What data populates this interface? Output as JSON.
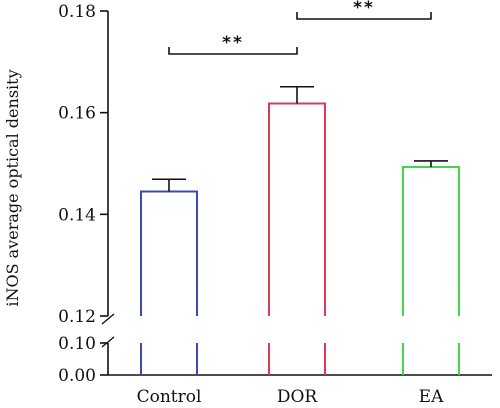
{
  "chart_data": {
    "type": "bar",
    "categories": [
      "Control",
      "DOR",
      "EA"
    ],
    "values": [
      0.1445,
      0.1618,
      0.1493
    ],
    "errors": [
      0.0024,
      0.0033,
      0.0012
    ],
    "colors": [
      "#3a49b4",
      "#d93b55",
      "#44d44a"
    ],
    "ylabel": "iNOS average optical density",
    "y_axis": {
      "broken": true,
      "upper_range": [
        0.12,
        0.18
      ],
      "upper_ticks": [
        "0.12",
        "0.14",
        "0.16",
        "0.18"
      ],
      "lower_range": [
        0.0,
        0.1
      ],
      "lower_ticks": [
        "0.00",
        "0.10"
      ]
    },
    "significance": [
      {
        "from": 0,
        "to": 1,
        "label": "**"
      },
      {
        "from": 1,
        "to": 2,
        "label": "**"
      }
    ]
  }
}
